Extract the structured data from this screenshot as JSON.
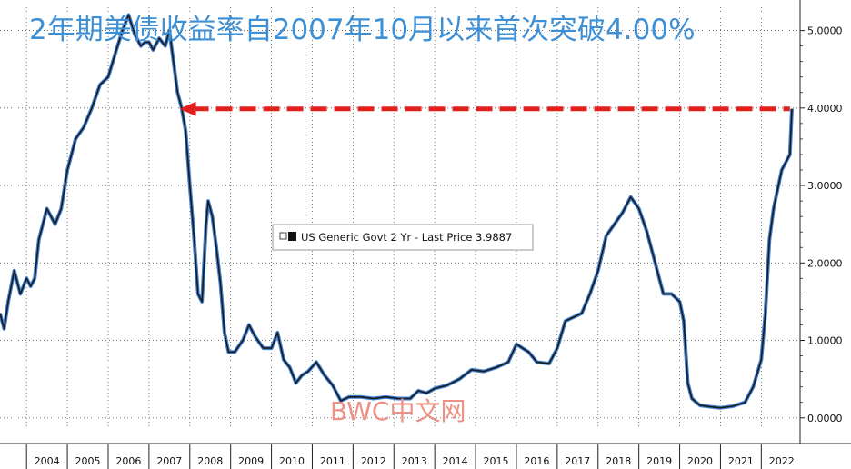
{
  "title": "2年期美债收益率自2007年10月以来首次突破4.00%",
  "watermark": "BWC中文网",
  "chart_data": {
    "type": "line",
    "x_ticks": [
      "2004",
      "2005",
      "2006",
      "2007",
      "2008",
      "2009",
      "2010",
      "2011",
      "2012",
      "2013",
      "2014",
      "2015",
      "2016",
      "2017",
      "2018",
      "2019",
      "2020",
      "2021",
      "2022"
    ],
    "y_ticks": [
      "0.0000",
      "1.0000",
      "2.0000",
      "3.0000",
      "4.0000",
      "5.0000"
    ],
    "ylim": [
      -0.12,
      5.3
    ],
    "xlim": [
      2003.35,
      2022.95
    ],
    "grid": true,
    "series": [
      {
        "name": "US Generic Govt 2 Yr",
        "legend": "US Generic Govt 2 Yr - Last Price 3.9887",
        "last_price": 3.9887,
        "color": "#1a1a1a",
        "x": [
          2003.35,
          2003.45,
          2003.55,
          2003.7,
          2003.85,
          2004.0,
          2004.1,
          2004.2,
          2004.3,
          2004.5,
          2004.7,
          2004.85,
          2005.0,
          2005.2,
          2005.4,
          2005.6,
          2005.8,
          2006.0,
          2006.2,
          2006.35,
          2006.5,
          2006.65,
          2006.8,
          2006.9,
          2007.0,
          2007.1,
          2007.25,
          2007.4,
          2007.5,
          2007.6,
          2007.7,
          2007.8,
          2007.9,
          2008.0,
          2008.1,
          2008.2,
          2008.3,
          2008.4,
          2008.45,
          2008.55,
          2008.65,
          2008.75,
          2008.85,
          2008.95,
          2009.1,
          2009.3,
          2009.45,
          2009.6,
          2009.8,
          2010.0,
          2010.15,
          2010.3,
          2010.45,
          2010.6,
          2010.75,
          2010.9,
          2011.1,
          2011.3,
          2011.5,
          2011.7,
          2011.9,
          2012.2,
          2012.5,
          2012.8,
          2013.1,
          2013.4,
          2013.6,
          2013.8,
          2014.0,
          2014.3,
          2014.6,
          2014.9,
          2015.2,
          2015.5,
          2015.8,
          2016.0,
          2016.3,
          2016.5,
          2016.8,
          2017.0,
          2017.2,
          2017.4,
          2017.6,
          2017.8,
          2018.0,
          2018.2,
          2018.4,
          2018.6,
          2018.8,
          2019.0,
          2019.2,
          2019.4,
          2019.6,
          2019.8,
          2020.0,
          2020.1,
          2020.2,
          2020.3,
          2020.5,
          2020.8,
          2021.0,
          2021.3,
          2021.6,
          2021.8,
          2022.0,
          2022.1,
          2022.2,
          2022.3,
          2022.4,
          2022.5,
          2022.6,
          2022.7,
          2022.75
        ],
        "y": [
          1.35,
          1.15,
          1.5,
          1.9,
          1.6,
          1.8,
          1.7,
          1.8,
          2.3,
          2.7,
          2.5,
          2.7,
          3.2,
          3.6,
          3.75,
          4.0,
          4.3,
          4.4,
          4.75,
          5.0,
          5.2,
          4.95,
          4.8,
          4.85,
          4.85,
          4.75,
          4.9,
          4.8,
          5.0,
          4.6,
          4.2,
          4.0,
          3.7,
          3.0,
          2.35,
          1.6,
          1.5,
          2.5,
          2.8,
          2.6,
          2.2,
          1.75,
          1.1,
          0.85,
          0.85,
          1.0,
          1.2,
          1.05,
          0.9,
          0.9,
          1.1,
          0.75,
          0.65,
          0.45,
          0.55,
          0.6,
          0.72,
          0.55,
          0.42,
          0.22,
          0.27,
          0.27,
          0.25,
          0.27,
          0.25,
          0.25,
          0.35,
          0.32,
          0.38,
          0.42,
          0.5,
          0.62,
          0.6,
          0.65,
          0.72,
          0.95,
          0.85,
          0.72,
          0.7,
          0.9,
          1.25,
          1.3,
          1.35,
          1.6,
          1.9,
          2.35,
          2.5,
          2.65,
          2.85,
          2.7,
          2.4,
          2.0,
          1.6,
          1.6,
          1.5,
          1.25,
          0.45,
          0.25,
          0.16,
          0.14,
          0.13,
          0.15,
          0.2,
          0.4,
          0.75,
          1.35,
          2.3,
          2.7,
          2.95,
          3.2,
          3.3,
          3.4,
          3.99
        ]
      }
    ]
  }
}
